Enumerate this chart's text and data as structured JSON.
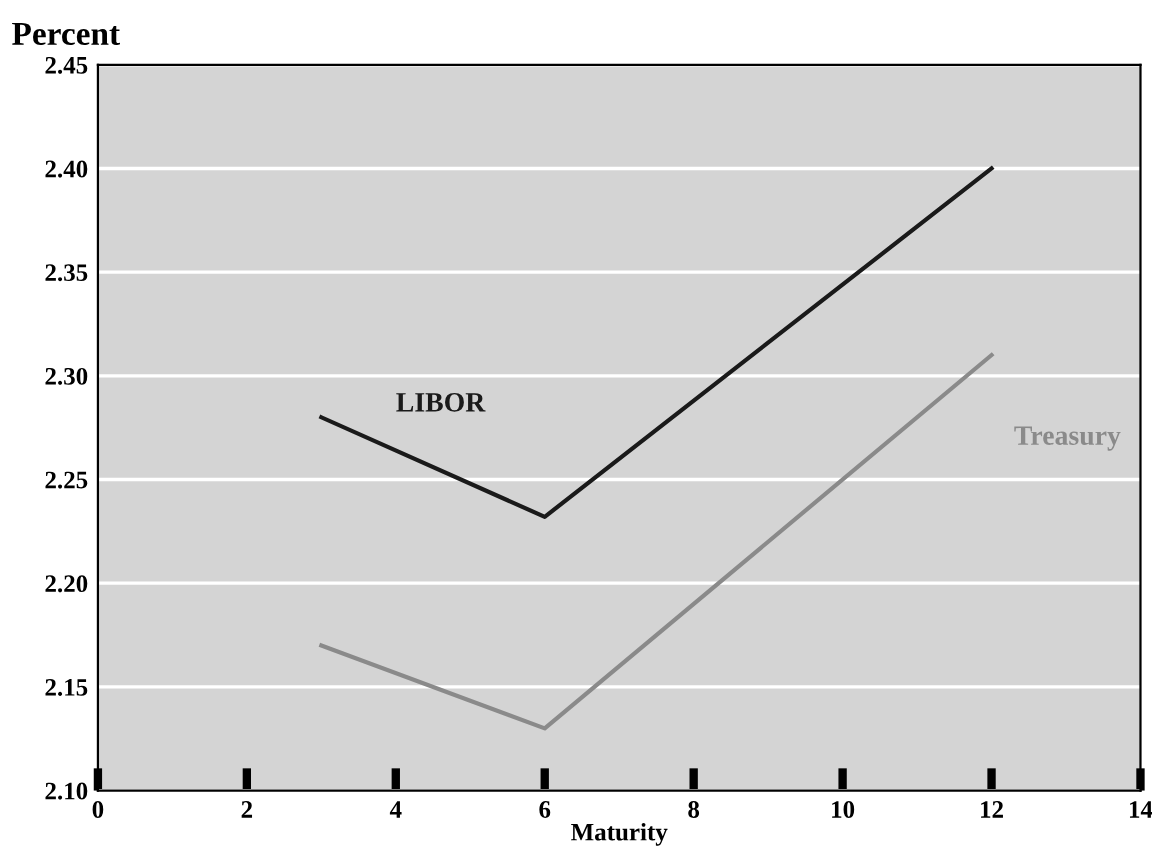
{
  "chart_data": {
    "type": "line",
    "ylabel": "Percent",
    "xlabel": "Maturity",
    "x": [
      3,
      6,
      12
    ],
    "series": [
      {
        "name": "LIBOR",
        "color": "#1a1a1a",
        "values": [
          2.28,
          2.232,
          2.4
        ]
      },
      {
        "name": "Treasury",
        "color": "#8a8a8a",
        "values": [
          2.17,
          2.13,
          2.31
        ]
      }
    ],
    "xlim": [
      0,
      14
    ],
    "xticks": [
      0,
      2,
      4,
      6,
      8,
      10,
      12,
      14
    ],
    "ylim": [
      2.1,
      2.45
    ],
    "yticks": [
      {
        "value": 2.1,
        "label": "2.10"
      },
      2.15,
      {
        "value": 2.2,
        "label": "2.20"
      },
      2.25,
      {
        "value": 2.3,
        "label": "2.30"
      },
      2.35,
      {
        "value": 2.4,
        "label": "2.40"
      },
      2.45
    ],
    "grid": "y",
    "legend": false,
    "marker": "none",
    "line_style": "solid"
  }
}
